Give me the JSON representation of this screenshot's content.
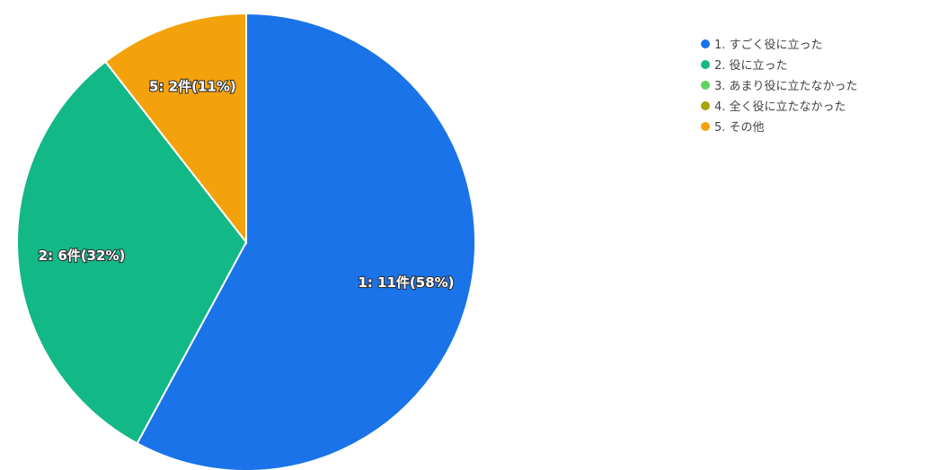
{
  "chart_data": {
    "type": "pie",
    "legend_position": "right",
    "slices": [
      {
        "label": "1. すごく役に立った",
        "value": 11,
        "percent": 58,
        "slice_label": "1: 11件(58%)",
        "color": "#1a73e8"
      },
      {
        "label": "2. 役に立った",
        "value": 6,
        "percent": 32,
        "slice_label": "2: 6件(32%)",
        "color": "#12b886"
      },
      {
        "label": "3. あまり役に立たなかった",
        "value": 0,
        "percent": 0,
        "slice_label": "",
        "color": "#5fd35f"
      },
      {
        "label": "4. 全く役に立たなかった",
        "value": 0,
        "percent": 0,
        "slice_label": "",
        "color": "#a4a40d"
      },
      {
        "label": "5. その他",
        "value": 2,
        "percent": 11,
        "slice_label": "5: 2件(11%)",
        "color": "#f4a20b"
      }
    ]
  }
}
